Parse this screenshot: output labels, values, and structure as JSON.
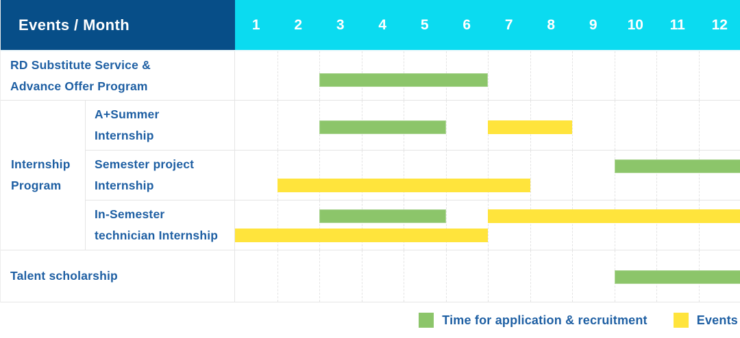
{
  "colors": {
    "header_bg": "#074E88",
    "months_bg": "#0BDBF0",
    "application_green": "#8CC56A",
    "events_yellow": "#FFE43C",
    "label_text": "#1E5FA3"
  },
  "chart_data": {
    "type": "table",
    "subtype": "gantt",
    "title": "Events / Month",
    "x_axis_label": "Month",
    "x_ticks": [
      "1",
      "2",
      "3",
      "4",
      "5",
      "6",
      "7",
      "8",
      "9",
      "10",
      "11",
      "12"
    ],
    "x_range": [
      1,
      12
    ],
    "grid": true,
    "legend_position": "bottom-right",
    "legend": [
      {
        "key": "application",
        "label": "Time for application & recruitment",
        "color": "#8CC56A"
      },
      {
        "key": "event",
        "label": "Events",
        "color": "#FFE43C"
      }
    ],
    "rows": [
      {
        "event": "RD Substitute Service & Advance Offer Program",
        "group": null,
        "label": "RD Substitute Service &\nAdvance Offer Program",
        "bars": [
          {
            "type": "application",
            "start": 3,
            "end": 6,
            "lane": "mid"
          }
        ]
      },
      {
        "event": "A+Summer Internship",
        "group": "Internship Program",
        "label": "A+Summer\nInternship",
        "bars": [
          {
            "type": "application",
            "start": 3,
            "end": 5,
            "lane": "mid"
          },
          {
            "type": "event",
            "start": 7,
            "end": 8,
            "lane": "mid"
          }
        ]
      },
      {
        "event": "Semester project Internship",
        "group": "Internship Program",
        "label": "Semester project\nInternship",
        "bars": [
          {
            "type": "application",
            "start": 10,
            "end": 12,
            "lane": "top"
          },
          {
            "type": "event",
            "start": 2,
            "end": 7,
            "lane": "bottom"
          }
        ]
      },
      {
        "event": "In-Semester technician Internship",
        "group": "Internship Program",
        "label": "In-Semester\ntechnician Internship",
        "bars": [
          {
            "type": "application",
            "start": 3,
            "end": 5,
            "lane": "top"
          },
          {
            "type": "event",
            "start": 7,
            "end": 12,
            "lane": "top"
          },
          {
            "type": "event",
            "start": 1,
            "end": 6,
            "lane": "bottom"
          }
        ]
      },
      {
        "event": "Talent scholarship",
        "group": null,
        "label": "Talent scholarship",
        "bars": [
          {
            "type": "application",
            "start": 10,
            "end": 12,
            "lane": "mid"
          }
        ]
      }
    ]
  }
}
